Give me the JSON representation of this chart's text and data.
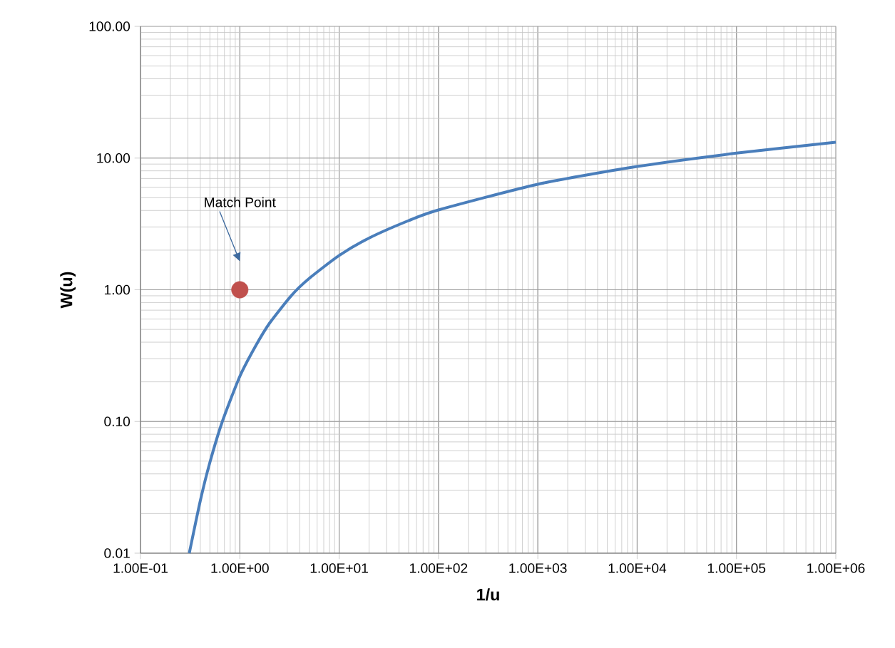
{
  "chart_data": {
    "type": "line",
    "xlabel": "1/u",
    "ylabel": "W(u)",
    "log": "xy",
    "grid": true,
    "xlim": [
      0.1,
      1000000
    ],
    "ylim": [
      0.01,
      100
    ],
    "xticks": [
      {
        "value": 0.1,
        "label": "1.00E-01"
      },
      {
        "value": 1,
        "label": "1.00E+00"
      },
      {
        "value": 10,
        "label": "1.00E+01"
      },
      {
        "value": 100,
        "label": "1.00E+02"
      },
      {
        "value": 1000,
        "label": "1.00E+03"
      },
      {
        "value": 10000,
        "label": "1.00E+04"
      },
      {
        "value": 100000,
        "label": "1.00E+05"
      },
      {
        "value": 1000000,
        "label": "1.00E+06"
      }
    ],
    "yticks": [
      {
        "value": 0.01,
        "label": "0.01"
      },
      {
        "value": 0.1,
        "label": "0.10"
      },
      {
        "value": 1,
        "label": "1.00"
      },
      {
        "value": 10,
        "label": "10.00"
      },
      {
        "value": 100,
        "label": "100.00"
      }
    ],
    "series": [
      {
        "type": "line",
        "color": "#4a7ebb",
        "marker": "none",
        "line_style": "solid",
        "x": [
          0.31,
          0.4,
          0.5,
          0.667,
          1,
          1.43,
          2,
          3.33,
          5,
          10,
          20,
          50,
          100,
          1000,
          10000,
          100000,
          1000000
        ],
        "values": [
          0.01,
          0.025,
          0.049,
          0.1,
          0.22,
          0.37,
          0.56,
          0.91,
          1.22,
          1.82,
          2.47,
          3.35,
          4.04,
          6.33,
          8.63,
          10.9,
          13.2
        ]
      },
      {
        "type": "scatter",
        "color": "#c0504d",
        "marker": "circle",
        "x": [
          1
        ],
        "values": [
          1
        ]
      }
    ],
    "annotations": [
      "Match Point"
    ]
  }
}
